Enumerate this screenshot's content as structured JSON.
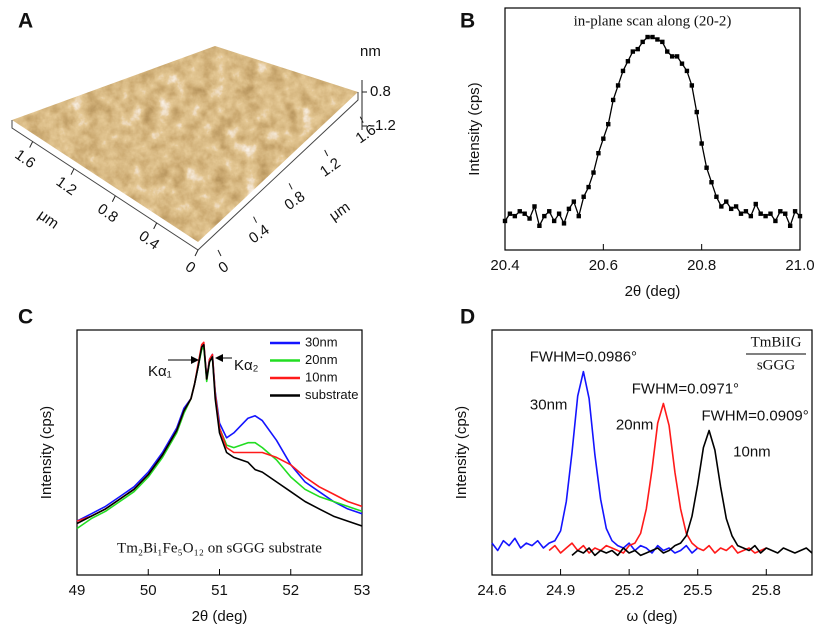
{
  "chart_data": [
    {
      "type": "surface",
      "panel": "A",
      "xticks": [
        1.6,
        1.2,
        0.8,
        0.4,
        0
      ],
      "yticks": [
        0,
        0.4,
        0.8,
        1.2,
        1.6
      ],
      "zticks": [
        0.8,
        -1.2
      ],
      "xlabel": "μm",
      "ylabel": "μm",
      "zlabel": "nm"
    },
    {
      "type": "line",
      "panel": "B",
      "title": "in-plane scan along (20-2)",
      "xlabel": "2θ (deg)",
      "ylabel": "Intensity (cps)",
      "markers": true,
      "color": "#000000",
      "x": [
        20.4,
        20.41,
        20.42,
        20.43,
        20.44,
        20.45,
        20.46,
        20.47,
        20.48,
        20.49,
        20.5,
        20.51,
        20.52,
        20.53,
        20.54,
        20.55,
        20.56,
        20.57,
        20.58,
        20.59,
        20.6,
        20.61,
        20.62,
        20.63,
        20.64,
        20.65,
        20.66,
        20.67,
        20.68,
        20.69,
        20.7,
        20.71,
        20.72,
        20.73,
        20.74,
        20.75,
        20.76,
        20.77,
        20.78,
        20.79,
        20.8,
        20.81,
        20.82,
        20.83,
        20.84,
        20.85,
        20.86,
        20.87,
        20.88,
        20.89,
        20.9,
        20.91,
        20.92,
        20.93,
        20.94,
        20.95,
        20.96,
        20.97,
        20.98,
        20.99,
        21.0
      ],
      "values": [
        12,
        15,
        14,
        16,
        15,
        13,
        18,
        10,
        14,
        16,
        12,
        15,
        11,
        17,
        20,
        14,
        22,
        26,
        32,
        40,
        46,
        52,
        62,
        68,
        74,
        78,
        82,
        83,
        86,
        88,
        88,
        87,
        86,
        82,
        80,
        80,
        77,
        74,
        68,
        57,
        44,
        34,
        28,
        22,
        18,
        20,
        17,
        18,
        15,
        16,
        14,
        19,
        15,
        14,
        15,
        12,
        16,
        15,
        10,
        16,
        14
      ],
      "xlim": [
        20.4,
        21.0
      ],
      "xticks": [
        20.4,
        20.6,
        20.8,
        {
          "value": 21.0,
          "label": "21.0"
        }
      ],
      "ylim": [
        0,
        100
      ]
    },
    {
      "type": "line",
      "panel": "C",
      "xlabel": "2θ (deg)",
      "ylabel": "Intensity (cps)",
      "legend": "upper right",
      "annotations": [
        "Kα₁",
        "Kα₂"
      ],
      "note": "Tm₂Bi₁Fe₅O₁₂ on sGGG substrate",
      "x": [
        49.0,
        49.2,
        49.4,
        49.6,
        49.8,
        50.0,
        50.2,
        50.4,
        50.5,
        50.6,
        50.65,
        50.7,
        50.75,
        50.78,
        50.82,
        50.86,
        50.9,
        50.94,
        51.0,
        51.1,
        51.2,
        51.4,
        51.5,
        51.6,
        51.8,
        52.0,
        52.2,
        52.4,
        52.6,
        52.8,
        53.0
      ],
      "series": [
        {
          "name": "30nm",
          "color": "#1414ff",
          "values": [
            22,
            25,
            28,
            32,
            36,
            42,
            50,
            60,
            68,
            72,
            78,
            85,
            93,
            94,
            80,
            88,
            90,
            75,
            62,
            56,
            58,
            64,
            65,
            63,
            55,
            45,
            38,
            34,
            30,
            27,
            25
          ]
        },
        {
          "name": "20nm",
          "color": "#22dd22",
          "values": [
            19,
            23,
            26,
            30,
            34,
            40,
            48,
            58,
            66,
            72,
            78,
            85,
            92,
            93,
            79,
            87,
            89,
            74,
            60,
            53,
            52,
            54,
            54,
            52,
            47,
            40,
            35,
            32,
            30,
            28,
            26
          ]
        },
        {
          "name": "10nm",
          "color": "#ff1a1a",
          "values": [
            22,
            24,
            27,
            31,
            35,
            41,
            49,
            59,
            67,
            72,
            78,
            86,
            94,
            95,
            80,
            88,
            90,
            74,
            60,
            52,
            50,
            50,
            50,
            50,
            48,
            45,
            40,
            36,
            33,
            30,
            28
          ]
        },
        {
          "name": "substrate",
          "color": "#000000",
          "values": [
            21,
            24,
            27,
            31,
            35,
            41,
            49,
            59,
            67,
            72,
            78,
            85,
            93,
            94,
            80,
            87,
            89,
            72,
            58,
            50,
            48,
            46,
            43,
            42,
            38,
            34,
            30,
            27,
            24,
            22,
            20
          ]
        }
      ],
      "xlim": [
        49,
        53
      ],
      "xticks": [
        49,
        50,
        51,
        52,
        53
      ],
      "ylim": [
        0,
        100
      ]
    },
    {
      "type": "line",
      "panel": "D",
      "xlabel": "ω (deg)",
      "ylabel": "Intensity (cps)",
      "ratio": {
        "numerator": "TmBiIG",
        "denominator": "sGGG"
      },
      "series": [
        {
          "name": "30nm",
          "color": "#1414ff",
          "annotation": "FWHM=0.0986°",
          "x": [
            24.6,
            24.625,
            24.65,
            24.675,
            24.7,
            24.725,
            24.75,
            24.775,
            24.8,
            24.825,
            24.85,
            24.875,
            24.9,
            24.925,
            24.95,
            24.975,
            25.0,
            25.025,
            25.05,
            25.075,
            25.1,
            25.125,
            25.15,
            25.175,
            25.2,
            25.225,
            25.25,
            25.275,
            25.3,
            25.325,
            25.35,
            25.375,
            25.4,
            25.425,
            25.45,
            25.475,
            25.5
          ],
          "values": [
            13,
            10,
            14,
            12,
            15,
            11,
            13,
            12,
            14,
            11,
            13,
            14,
            18,
            30,
            50,
            73,
            83,
            72,
            49,
            31,
            19,
            14,
            12,
            11,
            13,
            10,
            12,
            11,
            9,
            12,
            10,
            11,
            9,
            10,
            12,
            9,
            11
          ]
        },
        {
          "name": "20nm",
          "color": "#ff1a1a",
          "annotation": "FWHM=0.0971°",
          "x": [
            24.85,
            24.875,
            24.9,
            24.925,
            24.95,
            24.975,
            25.0,
            25.025,
            25.05,
            25.075,
            25.1,
            25.125,
            25.15,
            25.175,
            25.2,
            25.225,
            25.25,
            25.275,
            25.3,
            25.325,
            25.35,
            25.375,
            25.4,
            25.425,
            25.45,
            25.475,
            25.5,
            25.525,
            25.55,
            25.575,
            25.6,
            25.625,
            25.65,
            25.675,
            25.7,
            25.725,
            25.75,
            25.775,
            25.8
          ],
          "values": [
            10,
            12,
            9,
            11,
            13,
            10,
            12,
            9,
            11,
            10,
            12,
            11,
            10,
            9,
            12,
            13,
            17,
            27,
            43,
            62,
            70,
            61,
            42,
            27,
            17,
            13,
            11,
            10,
            12,
            9,
            11,
            10,
            12,
            9,
            10,
            11,
            9,
            10,
            11
          ]
        },
        {
          "name": "10nm",
          "color": "#000000",
          "annotation": "FWHM=0.0909°",
          "x": [
            24.95,
            24.975,
            25.0,
            25.025,
            25.05,
            25.075,
            25.1,
            25.125,
            25.15,
            25.175,
            25.2,
            25.225,
            25.25,
            25.275,
            25.3,
            25.325,
            25.35,
            25.375,
            25.4,
            25.425,
            25.45,
            25.475,
            25.5,
            25.525,
            25.55,
            25.575,
            25.6,
            25.625,
            25.65,
            25.675,
            25.7,
            25.725,
            25.75,
            25.775,
            25.8,
            25.825,
            25.85,
            25.875,
            25.9,
            25.925,
            25.95,
            25.975,
            26.0
          ],
          "values": [
            8,
            10,
            9,
            11,
            8,
            10,
            9,
            10,
            8,
            11,
            9,
            10,
            8,
            9,
            10,
            11,
            9,
            10,
            12,
            13,
            16,
            24,
            37,
            52,
            59,
            51,
            36,
            23,
            16,
            12,
            11,
            10,
            12,
            9,
            11,
            10,
            9,
            11,
            10,
            9,
            10,
            11,
            9
          ]
        }
      ],
      "xlim": [
        24.6,
        26.0
      ],
      "xticks": [
        24.6,
        24.9,
        25.2,
        25.5,
        25.8
      ],
      "ylim": [
        0,
        100
      ]
    }
  ]
}
